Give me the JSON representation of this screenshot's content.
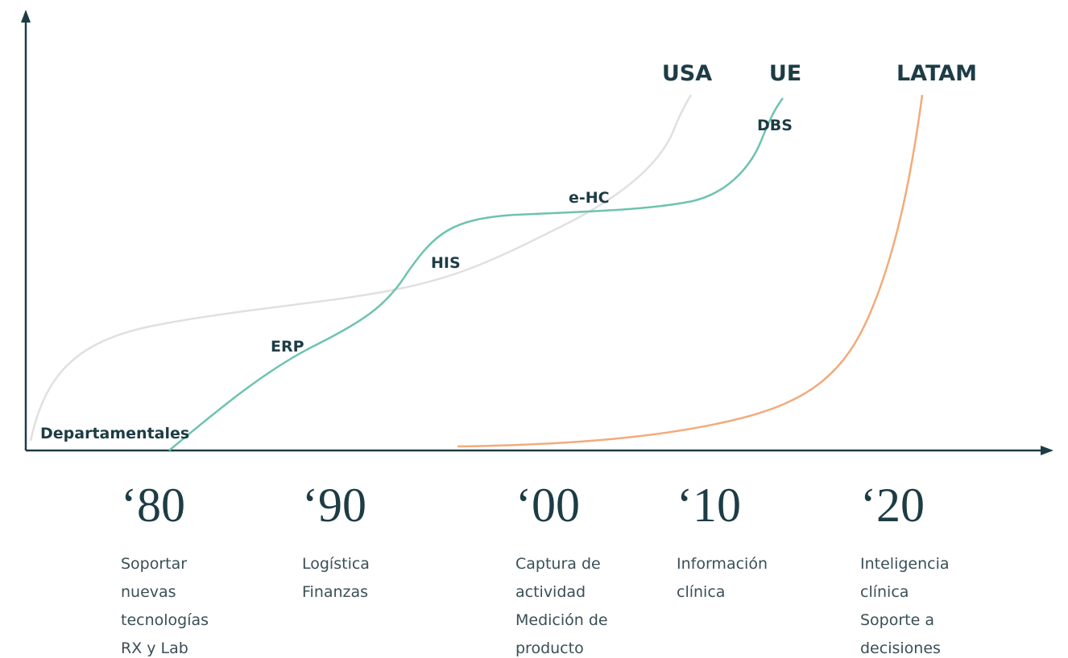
{
  "regions": [
    "USA",
    "UE",
    "LATAM"
  ],
  "stages": [
    "Departamentales",
    "ERP",
    "HIS",
    "e-HC",
    "DBS"
  ],
  "decades": [
    {
      "label": "‘80",
      "lines": [
        "Soportar",
        "nuevas",
        "tecnologías",
        "RX y Lab"
      ]
    },
    {
      "label": "‘90",
      "lines": [
        "Logística",
        "Finanzas"
      ]
    },
    {
      "label": "‘00",
      "lines": [
        "Captura de",
        "actividad",
        "Medición de",
        "producto"
      ]
    },
    {
      "label": "‘10",
      "lines": [
        "Información",
        "clínica"
      ]
    },
    {
      "label": "‘20",
      "lines": [
        "Inteligencia",
        "clínica",
        "Soporte a",
        "decisiones"
      ]
    }
  ]
}
